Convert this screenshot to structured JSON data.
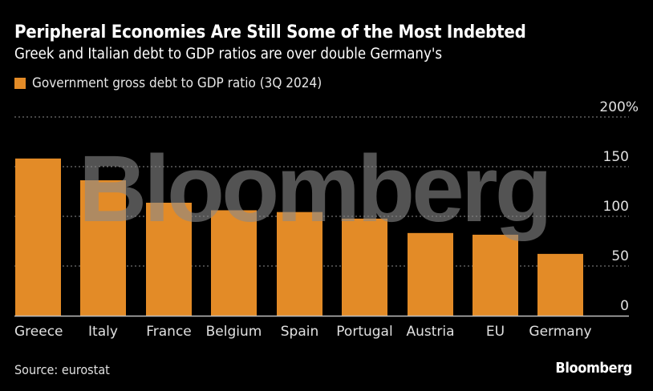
{
  "header": {
    "title": "Peripheral Economies Are Still Some of the Most Indebted",
    "subtitle": "Greek and Italian debt to GDP ratios are over double Germany's"
  },
  "footer": {
    "source": "Source: eurostat",
    "brand": "Bloomberg"
  },
  "watermark": "Bloomberg",
  "colors": {
    "bar": "#e38b27",
    "grid": "#8c8c8c",
    "axis": "#bfbfbf"
  },
  "chart_data": {
    "type": "bar",
    "title": "Peripheral Economies Are Still Some of the Most Indebted",
    "subtitle": "Greek and Italian debt to GDP ratios are over double Germany's",
    "xlabel": "",
    "ylabel": "",
    "ylim": [
      0,
      200
    ],
    "yticks": [
      0,
      50,
      100,
      150,
      200
    ],
    "ytick_labels": [
      "0",
      "50",
      "100",
      "150",
      "200%"
    ],
    "grid": true,
    "legend_position": "top-left",
    "categories": [
      "Greece",
      "Italy",
      "France",
      "Belgium",
      "Spain",
      "Portugal",
      "Austria",
      "EU",
      "Germany"
    ],
    "series": [
      {
        "name": "Government gross debt to GDP ratio (3Q 2024)",
        "values": [
          158.2,
          136.3,
          113.7,
          106.1,
          104.3,
          97.7,
          83.2,
          81.5,
          62.2
        ]
      }
    ]
  }
}
